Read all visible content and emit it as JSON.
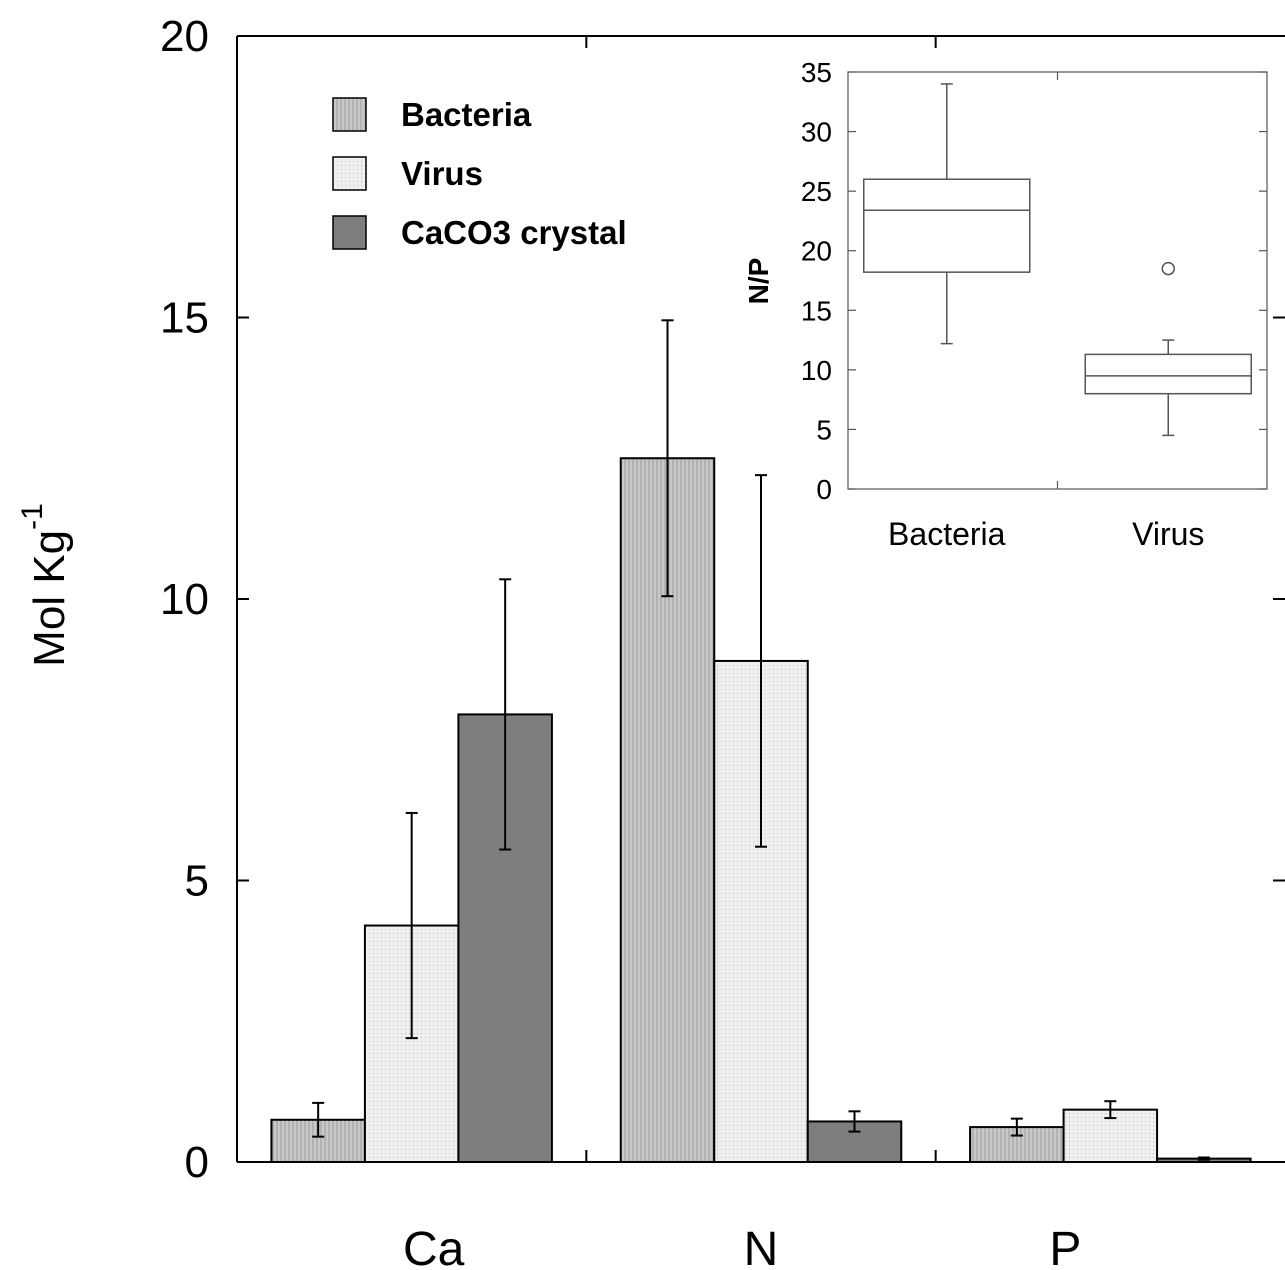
{
  "chart_data": [
    {
      "type": "bar",
      "title": "",
      "xlabel": "",
      "ylabel": "Mol Kg",
      "ylabel_superscript": "-1",
      "ylim": [
        0,
        20
      ],
      "yticks": [
        0,
        5,
        10,
        15,
        20
      ],
      "categories": [
        "Ca",
        "N",
        "P"
      ],
      "legend_position": "top-left",
      "grid": false,
      "series": [
        {
          "name": "Bacteria",
          "color": "#c4c4c4",
          "pattern": "vertical-hatch",
          "values": [
            0.75,
            12.5,
            0.62
          ],
          "errors": [
            0.3,
            2.45,
            0.15
          ]
        },
        {
          "name": "Virus",
          "color": "#ececec",
          "pattern": "dots",
          "values": [
            4.2,
            8.9,
            0.93
          ],
          "errors": [
            2.0,
            3.3,
            0.15
          ]
        },
        {
          "name": "CaCO3 crystal",
          "color": "#7e7e7e",
          "pattern": "solid",
          "values": [
            7.95,
            0.72,
            0.06
          ],
          "errors": [
            2.4,
            0.18,
            0.02
          ]
        }
      ]
    },
    {
      "type": "box",
      "title": "",
      "ylabel": "N/P",
      "ylim": [
        0,
        35
      ],
      "yticks": [
        0,
        5,
        10,
        15,
        20,
        25,
        30,
        35
      ],
      "categories": [
        "Bacteria",
        "Virus"
      ],
      "boxes": [
        {
          "category": "Bacteria",
          "whisker_low": 12.2,
          "q1": 18.2,
          "median": 23.4,
          "q3": 26.0,
          "whisker_high": 34.0,
          "outliers": []
        },
        {
          "category": "Virus",
          "whisker_low": 4.5,
          "q1": 8.0,
          "median": 9.5,
          "q3": 11.3,
          "whisker_high": 12.5,
          "outliers": [
            18.5
          ]
        }
      ]
    }
  ]
}
